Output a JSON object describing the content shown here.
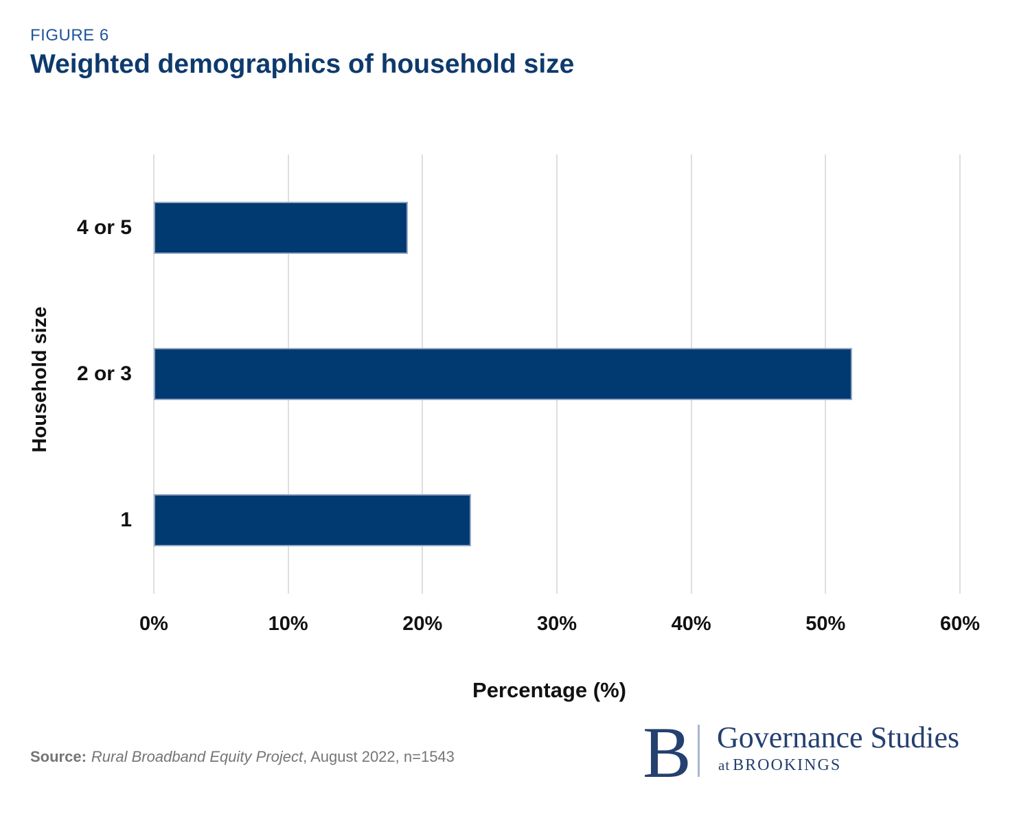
{
  "figure_label": "FIGURE 6",
  "title": "Weighted demographics of household size",
  "chart_data": {
    "type": "bar",
    "orientation": "horizontal",
    "title": "Weighted demographics of household size",
    "categories": [
      "4 or 5",
      "2 or 3",
      "1"
    ],
    "values": [
      18.9,
      52,
      23.6
    ],
    "xlabel": "Percentage (%)",
    "ylabel": "Household size",
    "xlim": [
      0,
      60
    ],
    "xtick_values": [
      0,
      10,
      20,
      30,
      40,
      50,
      60
    ],
    "xtick_labels": [
      "0%",
      "10%",
      "20%",
      "30%",
      "40%",
      "50%",
      "60%"
    ],
    "grid": true,
    "legend": "none",
    "bar_color": "#003a70"
  },
  "source": {
    "label": "Source:",
    "name": "Rural Broadband Equity Project",
    "suffix": ", August 2022, n=1543"
  },
  "logo": {
    "initial": "B",
    "primary": "Governance Studies",
    "secondary_prefix": "at",
    "secondary": "BROOKINGS"
  },
  "colors": {
    "accent_blue": "#20549b",
    "title_navy": "#0e3a6d",
    "bar_fill": "#003a70",
    "bar_border": "#93a9c4",
    "grid_gray": "#dedede",
    "source_gray": "#757575",
    "logo_navy": "#24406f",
    "logo_divider": "#aab6cf"
  }
}
